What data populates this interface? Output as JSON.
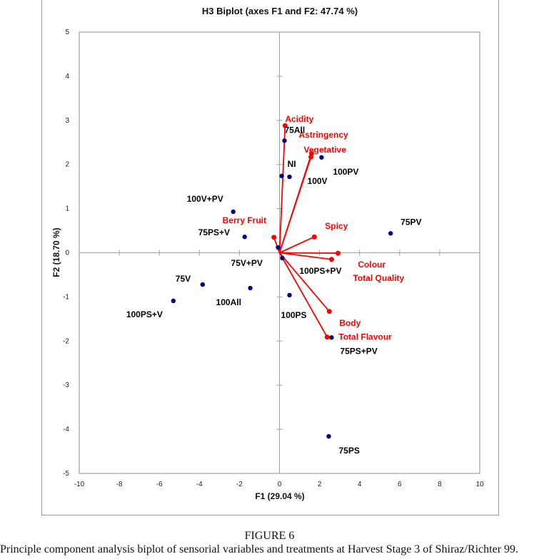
{
  "figure": {
    "number_label": "FIGURE 6",
    "caption": "Principle component analysis biplot of sensorial variables and treatments at Harvest Stage 3 of Shiraz/Richter 99."
  },
  "colors": {
    "variable": "#ff0000",
    "observation": "#000080",
    "observation_label": "#000000",
    "axis": "#a0a0a0",
    "frame": "#808080"
  },
  "chart_data": {
    "type": "scatter",
    "title": "H3 Biplot (axes F1 and F2: 47.74 %)",
    "xlabel": "F1 (29.04 %)",
    "ylabel": "F2 (18.70 %)",
    "xlim": [
      -10,
      10
    ],
    "ylim": [
      -5,
      5
    ],
    "xticks": [
      -10,
      -8,
      -6,
      -4,
      -2,
      0,
      2,
      4,
      6,
      8,
      10
    ],
    "yticks": [
      -5,
      -4,
      -3,
      -2,
      -1,
      0,
      1,
      2,
      3,
      4,
      5
    ],
    "grid": false,
    "legend": "none",
    "variables": [
      {
        "name": "Acidity",
        "x": 0.28,
        "y": 2.88
      },
      {
        "name": "Astringency",
        "x": 1.6,
        "y": 2.25
      },
      {
        "name": "Vegetative",
        "x": 1.57,
        "y": 2.17
      },
      {
        "name": "Berry Fruit",
        "x": -0.28,
        "y": 0.35
      },
      {
        "name": "Spicy",
        "x": 1.74,
        "y": 0.36
      },
      {
        "name": "Colour",
        "x": 2.92,
        "y": -0.01
      },
      {
        "name": "Total Quality",
        "x": 2.6,
        "y": -0.15
      },
      {
        "name": "Body",
        "x": 2.49,
        "y": -1.33
      },
      {
        "name": "Total Flavour",
        "x": 2.38,
        "y": -1.91
      }
    ],
    "observations": [
      {
        "name": "75All",
        "x": 0.25,
        "y": 2.54
      },
      {
        "name": "100PV",
        "x": 2.1,
        "y": 2.16
      },
      {
        "name": "NI",
        "x": 0.11,
        "y": 1.74
      },
      {
        "name": "100V",
        "x": 0.5,
        "y": 1.72
      },
      {
        "name": "100V+PV",
        "x": -2.31,
        "y": 0.93
      },
      {
        "name": "75PS+V",
        "x": -1.74,
        "y": 0.36
      },
      {
        "name": "75V+PV",
        "x": -0.07,
        "y": 0.12
      },
      {
        "name": "100PS+PV",
        "x": 0.14,
        "y": -0.12
      },
      {
        "name": "75PV",
        "x": 5.55,
        "y": 0.44
      },
      {
        "name": "75V",
        "x": -3.84,
        "y": -0.72
      },
      {
        "name": "100All",
        "x": -1.46,
        "y": -0.8
      },
      {
        "name": "100PS+V",
        "x": -5.3,
        "y": -1.09
      },
      {
        "name": "100PS",
        "x": 0.5,
        "y": -0.96
      },
      {
        "name": "75PS+PV",
        "x": 2.6,
        "y": -1.92
      },
      {
        "name": "75PS",
        "x": 2.46,
        "y": -4.16
      }
    ]
  }
}
